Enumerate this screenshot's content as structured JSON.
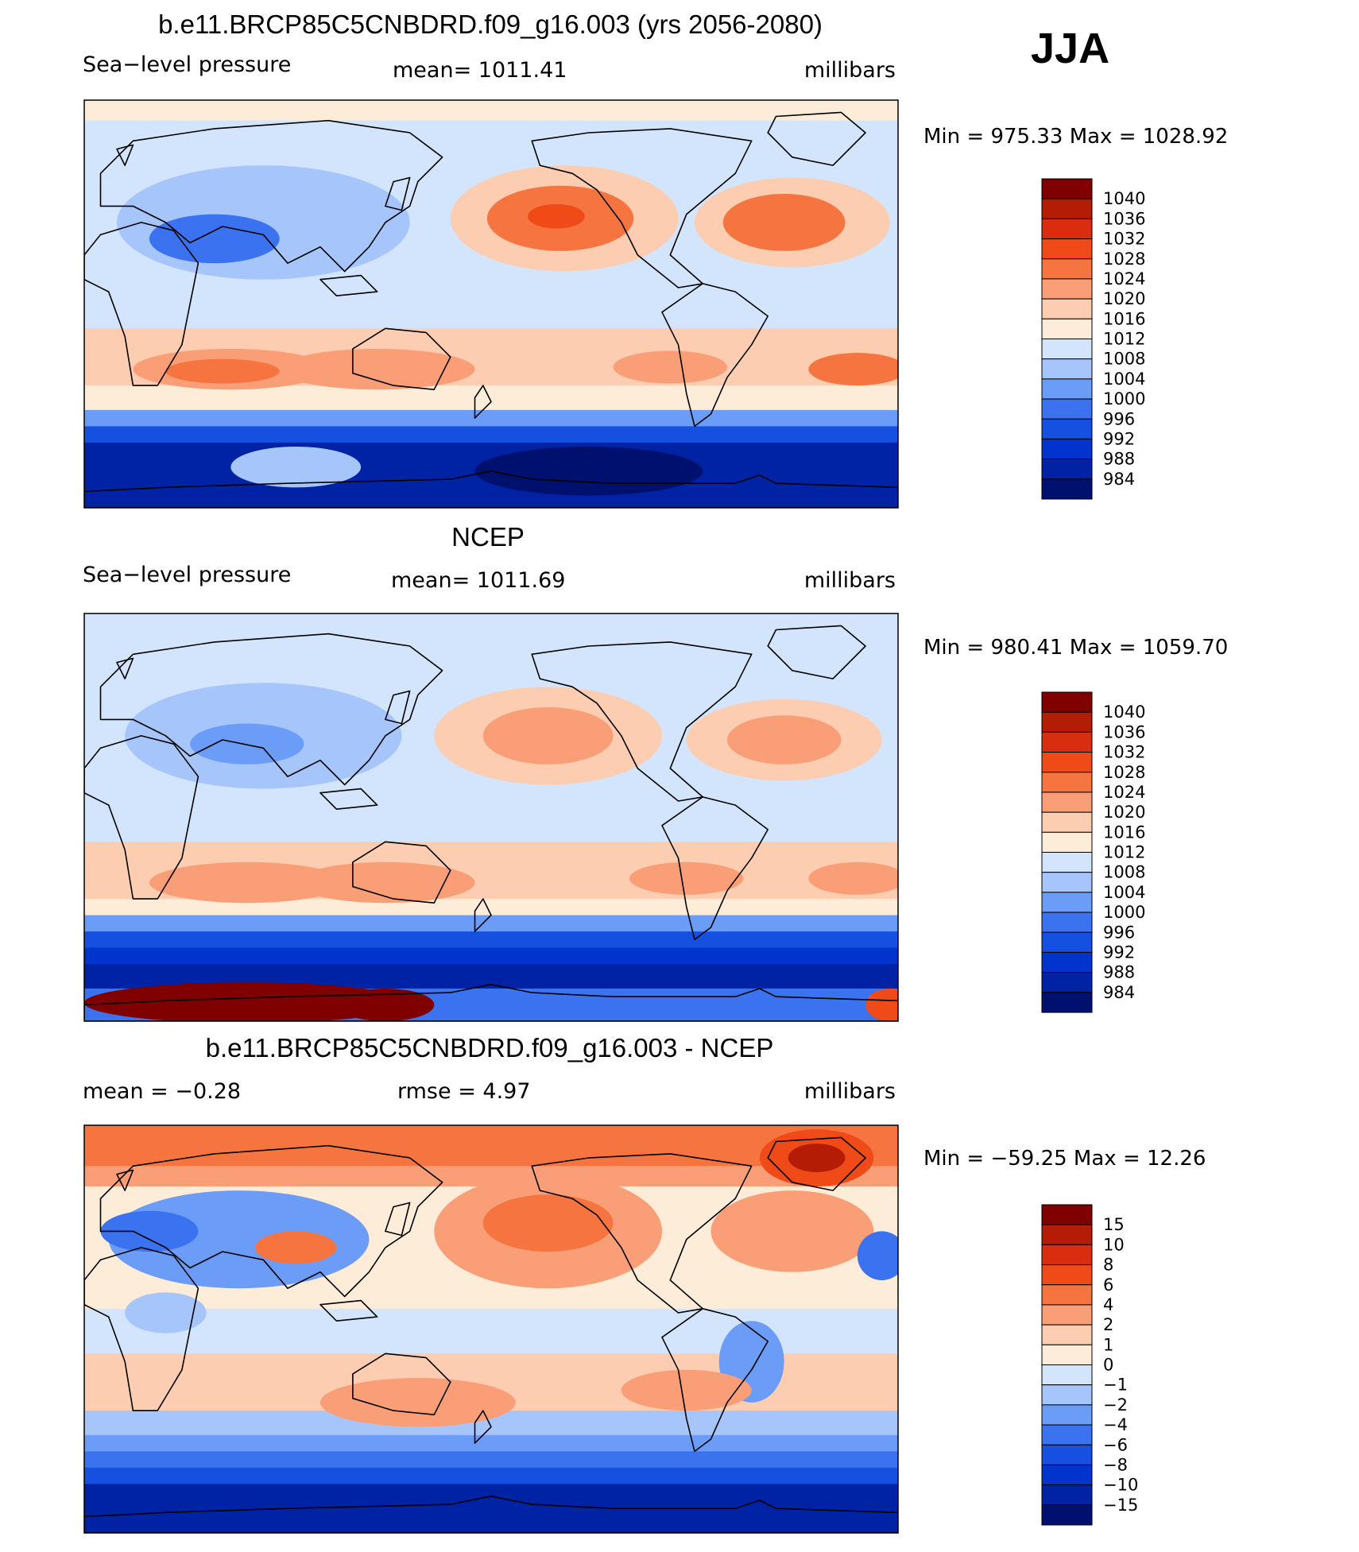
{
  "season": "JJA",
  "colors": {
    "pressure": [
      "#00106e",
      "#0023a6",
      "#0034cc",
      "#1550e0",
      "#3a72f0",
      "#6b9cf8",
      "#a6c6fb",
      "#d2e5fc",
      "#fcecd8",
      "#fccdb0",
      "#fa9e78",
      "#f5743f",
      "#ef4a18",
      "#d82d0e",
      "#b41c06",
      "#800000"
    ],
    "land_outline": "#000000"
  },
  "chart_data": [
    {
      "type": "heatmap",
      "title": "b.e11.BRCP85C5CNBDRD.f09_g16.003 (yrs 2056-2080)",
      "variable": "Sea−level pressure",
      "stat_label": "mean=  1011.41",
      "units": "millibars",
      "minmax": "Min  =  975.33  Max  =  1028.92",
      "colorbar_levels": [
        "1040",
        "1036",
        "1032",
        "1028",
        "1024",
        "1020",
        "1016",
        "1012",
        "1008",
        "1004",
        "1000",
        "996",
        "992",
        "988",
        "984"
      ],
      "field": {
        "background": 1012,
        "bands": [
          {
            "y": [
              0.0,
              0.05
            ],
            "v": 1014
          },
          {
            "y": [
              0.05,
              0.4
            ],
            "v": 1010
          },
          {
            "y": [
              0.4,
              0.56
            ],
            "v": 1010
          },
          {
            "y": [
              0.56,
              0.7
            ],
            "v": 1016
          },
          {
            "y": [
              0.7,
              0.76
            ],
            "v": 1012
          },
          {
            "y": [
              0.76,
              0.8
            ],
            "v": 1000
          },
          {
            "y": [
              0.8,
              0.84
            ],
            "v": 992
          },
          {
            "y": [
              0.84,
              0.88
            ],
            "v": 986
          },
          {
            "y": [
              0.88,
              1.0
            ],
            "v": 984
          }
        ],
        "blobs": [
          {
            "x": 0.59,
            "y": 0.29,
            "rx": 0.14,
            "ry": 0.13,
            "v": 1018
          },
          {
            "x": 0.585,
            "y": 0.29,
            "rx": 0.09,
            "ry": 0.08,
            "v": 1024
          },
          {
            "x": 0.58,
            "y": 0.285,
            "rx": 0.035,
            "ry": 0.03,
            "v": 1028
          },
          {
            "x": 0.87,
            "y": 0.3,
            "rx": 0.12,
            "ry": 0.11,
            "v": 1018
          },
          {
            "x": 0.86,
            "y": 0.3,
            "rx": 0.075,
            "ry": 0.07,
            "v": 1024
          },
          {
            "x": 0.18,
            "y": 0.66,
            "rx": 0.12,
            "ry": 0.05,
            "v": 1020
          },
          {
            "x": 0.17,
            "y": 0.665,
            "rx": 0.07,
            "ry": 0.03,
            "v": 1024
          },
          {
            "x": 0.36,
            "y": 0.66,
            "rx": 0.12,
            "ry": 0.05,
            "v": 1020
          },
          {
            "x": 0.72,
            "y": 0.655,
            "rx": 0.07,
            "ry": 0.04,
            "v": 1020
          },
          {
            "x": 0.95,
            "y": 0.66,
            "rx": 0.06,
            "ry": 0.04,
            "v": 1024
          },
          {
            "x": 0.22,
            "y": 0.3,
            "rx": 0.18,
            "ry": 0.14,
            "v": 1004
          },
          {
            "x": 0.16,
            "y": 0.34,
            "rx": 0.08,
            "ry": 0.06,
            "v": 996
          },
          {
            "x": 0.26,
            "y": 0.9,
            "rx": 0.08,
            "ry": 0.05,
            "v": 1004
          },
          {
            "x": 0.62,
            "y": 0.91,
            "rx": 0.14,
            "ry": 0.06,
            "v": 980
          }
        ]
      }
    },
    {
      "type": "heatmap",
      "title": "NCEP",
      "variable": "Sea−level pressure",
      "stat_label": "mean=  1011.69",
      "units": "millibars",
      "minmax": "Min  =  980.41  Max  =  1059.70",
      "colorbar_levels": [
        "1040",
        "1036",
        "1032",
        "1028",
        "1024",
        "1020",
        "1016",
        "1012",
        "1008",
        "1004",
        "1000",
        "996",
        "992",
        "988",
        "984"
      ],
      "field": {
        "background": 1012,
        "bands": [
          {
            "y": [
              0.0,
              0.05
            ],
            "v": 1010
          },
          {
            "y": [
              0.05,
              0.4
            ],
            "v": 1010
          },
          {
            "y": [
              0.4,
              0.56
            ],
            "v": 1010
          },
          {
            "y": [
              0.56,
              0.7
            ],
            "v": 1016
          },
          {
            "y": [
              0.7,
              0.74
            ],
            "v": 1012
          },
          {
            "y": [
              0.74,
              0.78
            ],
            "v": 1002
          },
          {
            "y": [
              0.78,
              0.82
            ],
            "v": 994
          },
          {
            "y": [
              0.82,
              0.86
            ],
            "v": 988
          },
          {
            "y": [
              0.86,
              0.92
            ],
            "v": 984
          },
          {
            "y": [
              0.92,
              1.0
            ],
            "v": 996
          }
        ],
        "blobs": [
          {
            "x": 0.57,
            "y": 0.3,
            "rx": 0.14,
            "ry": 0.12,
            "v": 1018
          },
          {
            "x": 0.57,
            "y": 0.3,
            "rx": 0.08,
            "ry": 0.07,
            "v": 1022
          },
          {
            "x": 0.86,
            "y": 0.31,
            "rx": 0.12,
            "ry": 0.1,
            "v": 1018
          },
          {
            "x": 0.86,
            "y": 0.31,
            "rx": 0.07,
            "ry": 0.06,
            "v": 1022
          },
          {
            "x": 0.2,
            "y": 0.66,
            "rx": 0.12,
            "ry": 0.05,
            "v": 1020
          },
          {
            "x": 0.37,
            "y": 0.66,
            "rx": 0.11,
            "ry": 0.05,
            "v": 1020
          },
          {
            "x": 0.74,
            "y": 0.65,
            "rx": 0.07,
            "ry": 0.04,
            "v": 1020
          },
          {
            "x": 0.95,
            "y": 0.65,
            "rx": 0.06,
            "ry": 0.04,
            "v": 1020
          },
          {
            "x": 0.22,
            "y": 0.3,
            "rx": 0.17,
            "ry": 0.13,
            "v": 1006
          },
          {
            "x": 0.2,
            "y": 0.32,
            "rx": 0.07,
            "ry": 0.05,
            "v": 1002
          },
          {
            "x": 0.2,
            "y": 0.955,
            "rx": 0.2,
            "ry": 0.05,
            "v": 1040
          },
          {
            "x": 0.37,
            "y": 0.96,
            "rx": 0.06,
            "ry": 0.04,
            "v": 1040
          },
          {
            "x": 0.99,
            "y": 0.96,
            "rx": 0.03,
            "ry": 0.04,
            "v": 1030
          }
        ]
      }
    },
    {
      "type": "heatmap",
      "title": "b.e11.BRCP85C5CNBDRD.f09_g16.003 - NCEP",
      "stat_label": "mean  =    −0.28",
      "rmse_label": "rmse  =      4.97",
      "units": "millibars",
      "minmax": "Min  =  −59.25  Max  =    12.26",
      "colorbar_levels": [
        "15",
        "10",
        "8",
        "6",
        "4",
        "2",
        "1",
        "0",
        "−1",
        "−2",
        "−4",
        "−6",
        "−8",
        "−10",
        "−15"
      ],
      "field": {
        "background": 0.5,
        "bands": [
          {
            "y": [
              0.0,
              0.1
            ],
            "v": 5
          },
          {
            "y": [
              0.1,
              0.15
            ],
            "v": 3
          },
          {
            "y": [
              0.15,
              0.45
            ],
            "v": 0.5
          },
          {
            "y": [
              0.45,
              0.56
            ],
            "v": -0.5
          },
          {
            "y": [
              0.56,
              0.7
            ],
            "v": 1.5
          },
          {
            "y": [
              0.7,
              0.76
            ],
            "v": -1.5
          },
          {
            "y": [
              0.76,
              0.8
            ],
            "v": -3
          },
          {
            "y": [
              0.8,
              0.84
            ],
            "v": -5
          },
          {
            "y": [
              0.84,
              0.88
            ],
            "v": -7
          },
          {
            "y": [
              0.88,
              1.0
            ],
            "v": -12
          }
        ],
        "blobs": [
          {
            "x": 0.9,
            "y": 0.08,
            "rx": 0.07,
            "ry": 0.07,
            "v": 7
          },
          {
            "x": 0.9,
            "y": 0.08,
            "rx": 0.035,
            "ry": 0.035,
            "v": 12
          },
          {
            "x": 0.57,
            "y": 0.26,
            "rx": 0.14,
            "ry": 0.14,
            "v": 3
          },
          {
            "x": 0.57,
            "y": 0.24,
            "rx": 0.08,
            "ry": 0.07,
            "v": 5
          },
          {
            "x": 0.87,
            "y": 0.26,
            "rx": 0.1,
            "ry": 0.1,
            "v": 3
          },
          {
            "x": 0.19,
            "y": 0.28,
            "rx": 0.16,
            "ry": 0.12,
            "v": -2.5
          },
          {
            "x": 0.26,
            "y": 0.3,
            "rx": 0.05,
            "ry": 0.04,
            "v": 5
          },
          {
            "x": 0.08,
            "y": 0.26,
            "rx": 0.06,
            "ry": 0.05,
            "v": -5
          },
          {
            "x": 0.82,
            "y": 0.58,
            "rx": 0.04,
            "ry": 0.1,
            "v": -3
          },
          {
            "x": 0.41,
            "y": 0.68,
            "rx": 0.12,
            "ry": 0.06,
            "v": 3
          },
          {
            "x": 0.74,
            "y": 0.65,
            "rx": 0.08,
            "ry": 0.05,
            "v": 3
          },
          {
            "x": 0.1,
            "y": 0.46,
            "rx": 0.05,
            "ry": 0.05,
            "v": -1.5
          },
          {
            "x": 0.98,
            "y": 0.32,
            "rx": 0.03,
            "ry": 0.06,
            "v": -5
          }
        ]
      }
    }
  ]
}
